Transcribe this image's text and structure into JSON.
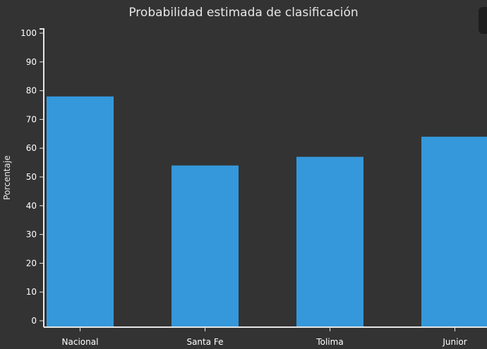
{
  "chart_data": {
    "type": "bar",
    "title": "Probabilidad estimada de clasificación",
    "xlabel": "",
    "ylabel": "Porcentaje",
    "categories": [
      "Nacional",
      "Santa Fe",
      "Tolima",
      "Junior"
    ],
    "values": [
      78,
      54,
      57,
      64
    ],
    "ylim": [
      0,
      100
    ],
    "yticks": [
      0,
      10,
      20,
      30,
      40,
      50,
      60,
      70,
      80,
      90,
      100
    ],
    "grid": false,
    "bar_color": "#3498db",
    "background": "#333333"
  }
}
